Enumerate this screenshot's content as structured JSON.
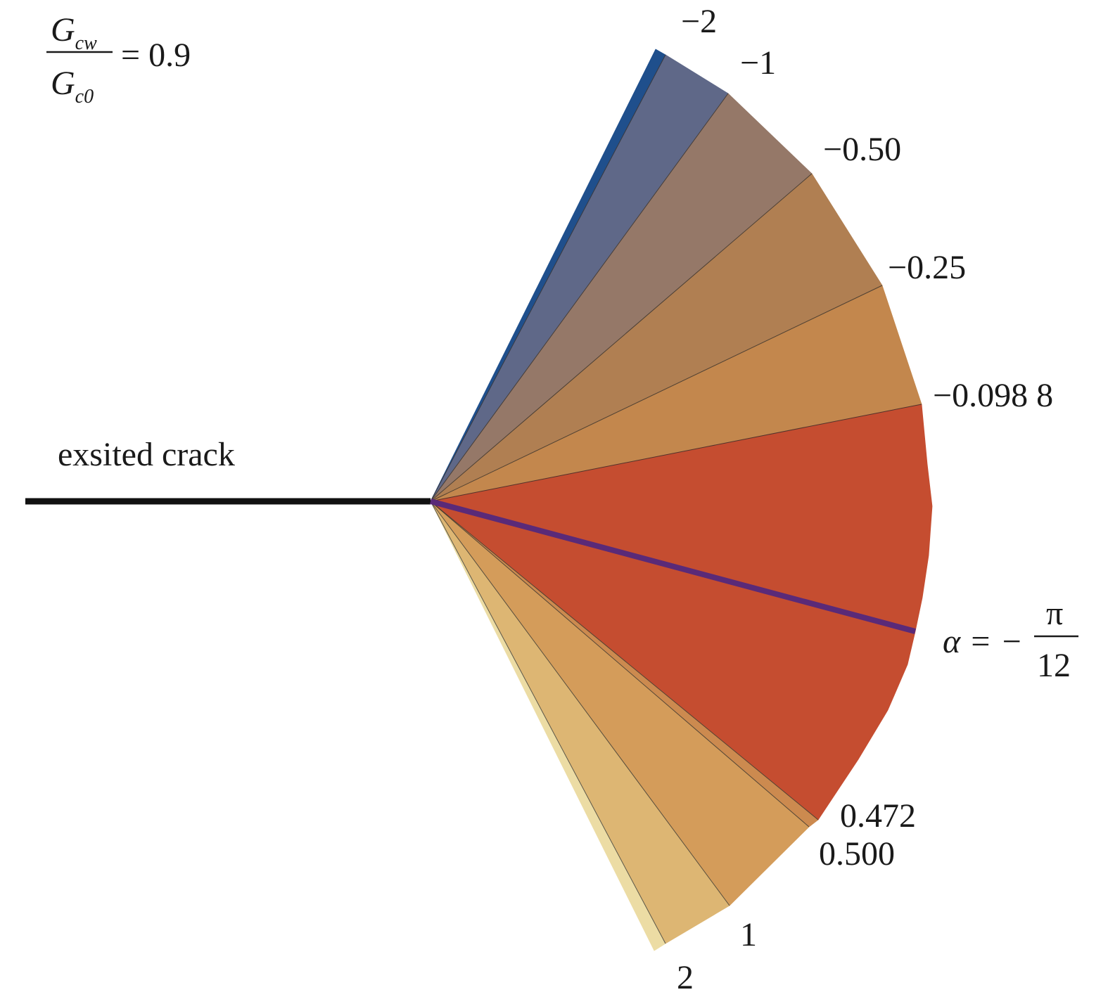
{
  "ratio_label": {
    "numerator_main": "G",
    "numerator_sub": "cw",
    "denominator_main": "G",
    "denominator_sub": "c0",
    "equals": "= 0.9"
  },
  "crack_label": "exsited crack",
  "alpha_label": {
    "lhs": "α = −",
    "numerator": "π",
    "denominator": "12"
  },
  "contour_labels": [
    "−2",
    "−1",
    "−0.50",
    "−0.25",
    "−0.098 8",
    "0.472",
    "0.500",
    "1",
    "2"
  ],
  "sectors": [
    {
      "id": "s-2",
      "color": "#1f4f8c"
    },
    {
      "id": "s-1",
      "color": "#5f6888"
    },
    {
      "id": "s-050",
      "color": "#957868"
    },
    {
      "id": "s-025",
      "color": "#b07f52"
    },
    {
      "id": "s-0988",
      "color": "#c3874d"
    },
    {
      "id": "s-main",
      "color": "#c54d30"
    },
    {
      "id": "s-0472",
      "color": "#cc8a4f"
    },
    {
      "id": "s-0500",
      "color": "#d49c5a"
    },
    {
      "id": "s-1b",
      "color": "#ddb673"
    },
    {
      "id": "s-2b",
      "color": "#ecdca4"
    }
  ],
  "colors": {
    "crack_line": "#111111",
    "direction_line": "#5a2a78",
    "boundary_line": "#2a2a2a"
  }
}
